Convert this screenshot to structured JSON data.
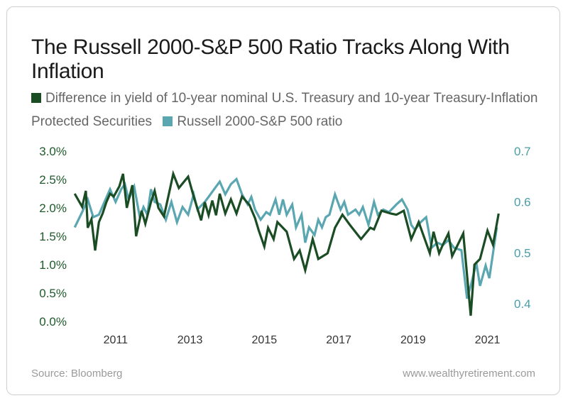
{
  "chart_data": {
    "type": "line",
    "title": "The Russell 2000-S&P 500 Ratio Tracks Along With Inflation",
    "source": "Source: Bloomberg",
    "website": "www.wealthyretirement.com",
    "colors": {
      "inflation": "#1a4d24",
      "ratio": "#5aa6b1"
    },
    "left_axis": {
      "ticks": [
        "0.0%",
        "0.5%",
        "1.0%",
        "1.5%",
        "2.0%",
        "2.5%",
        "3.0%"
      ],
      "range": [
        0,
        3
      ]
    },
    "right_axis": {
      "ticks": [
        "0.4",
        "0.5",
        "0.6",
        "0.7"
      ],
      "range": [
        0.365,
        0.7
      ]
    },
    "x_axis": {
      "ticks": [
        "2011",
        "2013",
        "2015",
        "2017",
        "2019",
        "2021"
      ],
      "range": [
        2009.8,
        2021.6
      ]
    },
    "series": [
      {
        "name": "Difference in yield of 10-year nominal U.S. Treasury and 10-year Treasury-Inflation Protected Securities",
        "axis": "left",
        "points": [
          [
            2009.9,
            2.25
          ],
          [
            2010.1,
            2.02
          ],
          [
            2010.2,
            2.3
          ],
          [
            2010.25,
            1.65
          ],
          [
            2010.35,
            1.8
          ],
          [
            2010.45,
            1.25
          ],
          [
            2010.55,
            1.75
          ],
          [
            2010.65,
            1.9
          ],
          [
            2010.75,
            2.1
          ],
          [
            2010.85,
            2.25
          ],
          [
            2010.95,
            2.2
          ],
          [
            2011.1,
            2.38
          ],
          [
            2011.2,
            2.6
          ],
          [
            2011.3,
            2.0
          ],
          [
            2011.45,
            2.4
          ],
          [
            2011.55,
            1.5
          ],
          [
            2011.7,
            1.95
          ],
          [
            2011.8,
            1.72
          ],
          [
            2011.95,
            2.1
          ],
          [
            2012.05,
            2.3
          ],
          [
            2012.15,
            2.0
          ],
          [
            2012.3,
            1.85
          ],
          [
            2012.45,
            2.3
          ],
          [
            2012.55,
            2.6
          ],
          [
            2012.7,
            2.35
          ],
          [
            2012.95,
            2.55
          ],
          [
            2013.1,
            2.2
          ],
          [
            2013.3,
            1.78
          ],
          [
            2013.4,
            2.1
          ],
          [
            2013.5,
            1.87
          ],
          [
            2013.6,
            2.13
          ],
          [
            2013.7,
            1.87
          ],
          [
            2013.8,
            2.25
          ],
          [
            2013.95,
            1.9
          ],
          [
            2014.1,
            2.15
          ],
          [
            2014.25,
            1.9
          ],
          [
            2014.4,
            2.2
          ],
          [
            2014.6,
            2.05
          ],
          [
            2014.75,
            1.82
          ],
          [
            2014.85,
            1.6
          ],
          [
            2015.0,
            1.32
          ],
          [
            2015.1,
            1.65
          ],
          [
            2015.25,
            1.45
          ],
          [
            2015.35,
            1.75
          ],
          [
            2015.6,
            1.58
          ],
          [
            2015.8,
            1.1
          ],
          [
            2015.95,
            1.25
          ],
          [
            2016.1,
            0.9
          ],
          [
            2016.3,
            1.45
          ],
          [
            2016.45,
            1.1
          ],
          [
            2016.7,
            1.2
          ],
          [
            2016.9,
            1.65
          ],
          [
            2017.1,
            1.88
          ],
          [
            2017.3,
            1.7
          ],
          [
            2017.6,
            1.45
          ],
          [
            2017.85,
            1.65
          ],
          [
            2017.95,
            1.62
          ],
          [
            2018.15,
            1.95
          ],
          [
            2018.4,
            1.9
          ],
          [
            2018.55,
            1.88
          ],
          [
            2018.75,
            1.95
          ],
          [
            2018.95,
            1.45
          ],
          [
            2019.15,
            1.75
          ],
          [
            2019.45,
            1.2
          ],
          [
            2019.55,
            1.58
          ],
          [
            2019.7,
            1.2
          ],
          [
            2019.8,
            1.35
          ],
          [
            2019.95,
            1.55
          ],
          [
            2020.05,
            1.15
          ],
          [
            2020.2,
            1.35
          ],
          [
            2020.35,
            1.55
          ],
          [
            2020.55,
            0.1
          ],
          [
            2020.65,
            1.0
          ],
          [
            2020.8,
            1.1
          ],
          [
            2021.0,
            1.6
          ],
          [
            2021.15,
            1.35
          ],
          [
            2021.3,
            1.9
          ]
        ]
      },
      {
        "name": "Russell 2000-S&P 500 ratio",
        "axis": "right",
        "points": [
          [
            2009.9,
            0.55
          ],
          [
            2010.1,
            0.58
          ],
          [
            2010.25,
            0.605
          ],
          [
            2010.4,
            0.57
          ],
          [
            2010.55,
            0.575
          ],
          [
            2010.7,
            0.6
          ],
          [
            2010.85,
            0.625
          ],
          [
            2011.0,
            0.6
          ],
          [
            2011.15,
            0.625
          ],
          [
            2011.25,
            0.635
          ],
          [
            2011.35,
            0.605
          ],
          [
            2011.5,
            0.63
          ],
          [
            2011.65,
            0.57
          ],
          [
            2011.75,
            0.59
          ],
          [
            2011.85,
            0.575
          ],
          [
            2011.95,
            0.625
          ],
          [
            2012.05,
            0.6
          ],
          [
            2012.2,
            0.595
          ],
          [
            2012.35,
            0.565
          ],
          [
            2012.5,
            0.6
          ],
          [
            2012.65,
            0.56
          ],
          [
            2012.8,
            0.59
          ],
          [
            2012.95,
            0.575
          ],
          [
            2013.1,
            0.615
          ],
          [
            2013.2,
            0.585
          ],
          [
            2013.4,
            0.6
          ],
          [
            2013.5,
            0.61
          ],
          [
            2013.65,
            0.625
          ],
          [
            2013.8,
            0.64
          ],
          [
            2013.95,
            0.615
          ],
          [
            2014.1,
            0.635
          ],
          [
            2014.25,
            0.645
          ],
          [
            2014.4,
            0.615
          ],
          [
            2014.55,
            0.595
          ],
          [
            2014.65,
            0.61
          ],
          [
            2014.75,
            0.585
          ],
          [
            2014.9,
            0.565
          ],
          [
            2015.05,
            0.58
          ],
          [
            2015.15,
            0.575
          ],
          [
            2015.3,
            0.605
          ],
          [
            2015.4,
            0.575
          ],
          [
            2015.5,
            0.605
          ],
          [
            2015.6,
            0.575
          ],
          [
            2015.75,
            0.595
          ],
          [
            2015.85,
            0.55
          ],
          [
            2016.0,
            0.575
          ],
          [
            2016.1,
            0.52
          ],
          [
            2016.2,
            0.55
          ],
          [
            2016.35,
            0.535
          ],
          [
            2016.45,
            0.565
          ],
          [
            2016.55,
            0.55
          ],
          [
            2016.65,
            0.57
          ],
          [
            2016.75,
            0.575
          ],
          [
            2016.9,
            0.615
          ],
          [
            2017.05,
            0.585
          ],
          [
            2017.15,
            0.6
          ],
          [
            2017.25,
            0.575
          ],
          [
            2017.45,
            0.585
          ],
          [
            2017.55,
            0.575
          ],
          [
            2017.65,
            0.59
          ],
          [
            2017.8,
            0.555
          ],
          [
            2017.95,
            0.6
          ],
          [
            2018.05,
            0.575
          ],
          [
            2018.2,
            0.585
          ],
          [
            2018.35,
            0.58
          ],
          [
            2018.55,
            0.595
          ],
          [
            2018.7,
            0.605
          ],
          [
            2018.85,
            0.585
          ],
          [
            2018.95,
            0.555
          ],
          [
            2019.05,
            0.545
          ],
          [
            2019.2,
            0.56
          ],
          [
            2019.35,
            0.57
          ],
          [
            2019.5,
            0.51
          ],
          [
            2019.65,
            0.52
          ],
          [
            2019.8,
            0.515
          ],
          [
            2019.95,
            0.525
          ],
          [
            2020.1,
            0.51
          ],
          [
            2020.3,
            0.505
          ],
          [
            2020.45,
            0.41
          ],
          [
            2020.55,
            0.435
          ],
          [
            2020.7,
            0.48
          ],
          [
            2020.8,
            0.435
          ],
          [
            2020.95,
            0.475
          ],
          [
            2021.05,
            0.45
          ],
          [
            2021.25,
            0.55
          ]
        ]
      }
    ]
  },
  "legend": {
    "inflation_label": "Difference in yield of 10-year nominal U.S. Treasury and 10-year Treasury-Inflation Protected Securities",
    "ratio_label": "Russell 2000-S&P 500 ratio"
  }
}
